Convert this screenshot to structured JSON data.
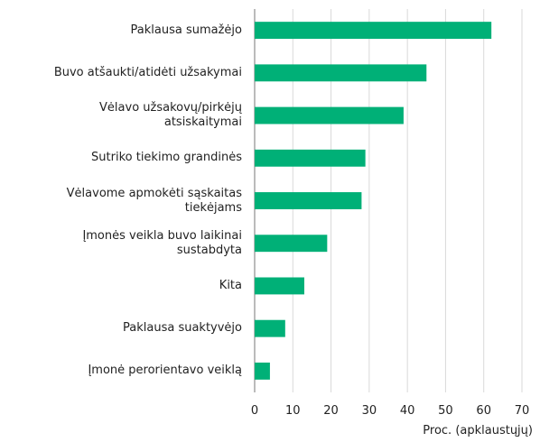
{
  "chart_data": {
    "type": "bar",
    "orientation": "horizontal",
    "categories": [
      "Paklausa sumažėjo",
      "Buvo atšaukti/atidėti užsakymai",
      "Vėlavo užsakovų/pirkėjų\natsiskaitymai",
      "Sutriko tiekimo grandinės",
      "Vėlavome apmokėti sąskaitas\ntiekėjams",
      "Įmonės veikla buvo laikinai\nsustabdyta",
      "Kita",
      "Paklausa suaktyvėjo",
      "Įmonė perorientavo veiklą"
    ],
    "values": [
      62,
      45,
      39,
      29,
      28,
      19,
      13,
      8,
      4
    ],
    "color": "#00b077",
    "xlim": [
      0,
      70
    ],
    "xticks": [
      0,
      10,
      20,
      30,
      40,
      50,
      60,
      70
    ],
    "x_label": "Proc. (apklaustųjų)",
    "grid": true
  }
}
